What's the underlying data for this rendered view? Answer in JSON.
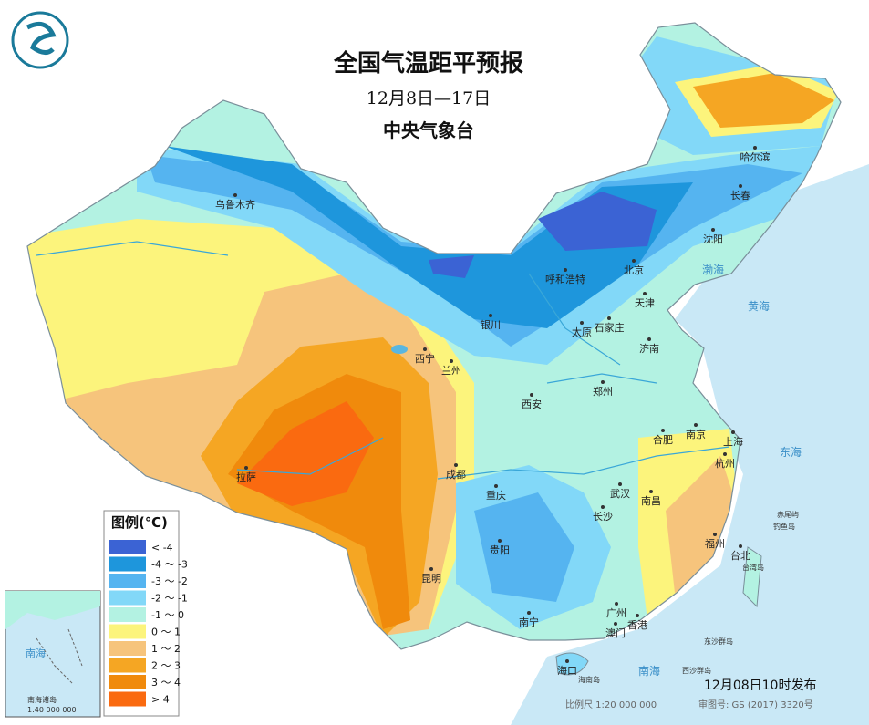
{
  "header": {
    "title": "全国气温距平预报",
    "period": "12月8日—17日",
    "issuer": "中央气象台"
  },
  "legend": {
    "title": "图例(℃)",
    "items": [
      {
        "label": "< -4",
        "color": "#3b63d4"
      },
      {
        "label": "-4 ～ -3",
        "color": "#1e96dc"
      },
      {
        "label": "-3 ～ -2",
        "color": "#55b4f0"
      },
      {
        "label": "-2 ～ -1",
        "color": "#82d8f8"
      },
      {
        "label": "-1 ～ 0",
        "color": "#b3f2e2"
      },
      {
        "label": "0 ～ 1",
        "color": "#fcf47c"
      },
      {
        "label": "1 ～ 2",
        "color": "#f6c47c"
      },
      {
        "label": "2 ～ 3",
        "color": "#f5a623"
      },
      {
        "label": "3 ～ 4",
        "color": "#f08a0c"
      },
      {
        "label": "> 4",
        "color": "#fa6a10"
      }
    ]
  },
  "cities": [
    {
      "name": "乌鲁木齐"
    },
    {
      "name": "呼和浩特"
    },
    {
      "name": "北京"
    },
    {
      "name": "哈尔滨"
    },
    {
      "name": "长春"
    },
    {
      "name": "沈阳"
    },
    {
      "name": "天津"
    },
    {
      "name": "石家庄"
    },
    {
      "name": "太原"
    },
    {
      "name": "济南"
    },
    {
      "name": "银川"
    },
    {
      "name": "西宁"
    },
    {
      "name": "兰州"
    },
    {
      "name": "西安"
    },
    {
      "name": "郑州"
    },
    {
      "name": "合肥"
    },
    {
      "name": "南京"
    },
    {
      "name": "上海"
    },
    {
      "name": "杭州"
    },
    {
      "name": "武汉"
    },
    {
      "name": "成都"
    },
    {
      "name": "拉萨"
    },
    {
      "name": "重庆"
    },
    {
      "name": "长沙"
    },
    {
      "name": "南昌"
    },
    {
      "name": "福州"
    },
    {
      "name": "台北"
    },
    {
      "name": "贵阳"
    },
    {
      "name": "昆明"
    },
    {
      "name": "南宁"
    },
    {
      "name": "广州"
    },
    {
      "name": "香港"
    },
    {
      "name": "澳门"
    },
    {
      "name": "海口"
    }
  ],
  "seas": [
    "渤海",
    "黄海",
    "东海",
    "南海"
  ],
  "islands": [
    "台湾岛",
    "赤尾屿",
    "钓鱼岛",
    "东沙群岛",
    "西沙群岛",
    "海南岛"
  ],
  "inset": {
    "sea": "南海",
    "islands": "南海诸岛",
    "scale": "1:40 000 000"
  },
  "footer": {
    "release": "12月08日10时发布",
    "scale": "比例尺 1:20 000 000",
    "review": "审图号: GS (2017) 3320号"
  }
}
